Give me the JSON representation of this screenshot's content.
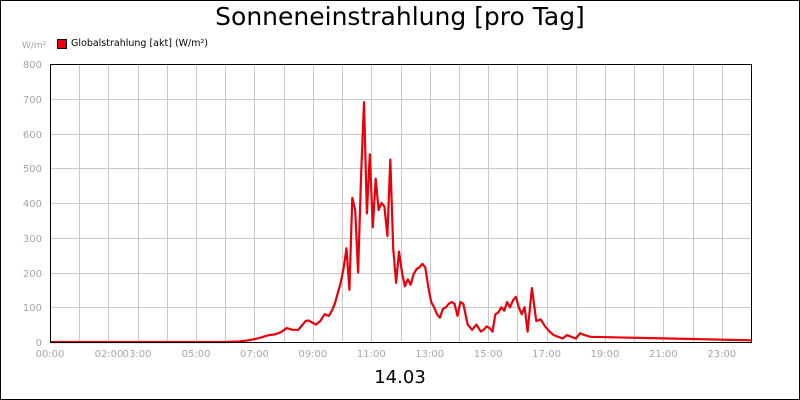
{
  "chart_data": {
    "type": "line",
    "title": "Sonneneinstrahlung [pro Tag]",
    "ylabel": "W/m²",
    "xlabel": "14.03",
    "ylim": [
      0,
      800
    ],
    "yticks": [
      0,
      100,
      200,
      300,
      400,
      500,
      600,
      700,
      800
    ],
    "xlim": [
      0,
      24
    ],
    "xticks": [
      {
        "x": 0,
        "label": "00:00"
      },
      {
        "x": 2,
        "label": "02:00"
      },
      {
        "x": 3,
        "label": "03:00"
      },
      {
        "x": 5,
        "label": "05:00"
      },
      {
        "x": 7,
        "label": "07:00"
      },
      {
        "x": 9,
        "label": "09:00"
      },
      {
        "x": 11,
        "label": "11:00"
      },
      {
        "x": 13,
        "label": "13:00"
      },
      {
        "x": 15,
        "label": "15:00"
      },
      {
        "x": 17,
        "label": "17:00"
      },
      {
        "x": 19,
        "label": "19:00"
      },
      {
        "x": 21,
        "label": "21:00"
      },
      {
        "x": 23,
        "label": "23:00"
      }
    ],
    "grid": true,
    "legend_position": "top-left",
    "series": [
      {
        "name": "Globalstrahlung [akt] (W/m²)",
        "color": "#e8000a",
        "x": [
          0,
          6.0,
          6.5,
          6.8,
          7.1,
          7.3,
          7.5,
          7.7,
          7.9,
          8.1,
          8.3,
          8.5,
          8.6,
          8.75,
          8.85,
          9.0,
          9.1,
          9.25,
          9.4,
          9.55,
          9.65,
          9.75,
          9.85,
          9.95,
          10.05,
          10.15,
          10.25,
          10.35,
          10.45,
          10.55,
          10.65,
          10.75,
          10.85,
          10.95,
          11.05,
          11.15,
          11.25,
          11.35,
          11.45,
          11.55,
          11.65,
          11.75,
          11.85,
          11.95,
          12.05,
          12.15,
          12.25,
          12.35,
          12.45,
          12.55,
          12.65,
          12.75,
          12.85,
          12.95,
          13.05,
          13.15,
          13.25,
          13.35,
          13.45,
          13.55,
          13.65,
          13.75,
          13.85,
          13.95,
          14.05,
          14.15,
          14.3,
          14.45,
          14.6,
          14.75,
          14.85,
          14.95,
          15.05,
          15.15,
          15.25,
          15.35,
          15.45,
          15.55,
          15.65,
          15.75,
          15.85,
          15.95,
          16.05,
          16.15,
          16.25,
          16.35,
          16.5,
          16.65,
          16.8,
          16.95,
          17.1,
          17.25,
          17.4,
          17.55,
          17.7,
          17.85,
          18.0,
          18.15,
          18.3,
          18.5,
          24.0
        ],
        "values": [
          0,
          0,
          2,
          5,
          10,
          15,
          20,
          22,
          28,
          40,
          35,
          35,
          45,
          60,
          62,
          55,
          50,
          60,
          80,
          75,
          90,
          110,
          140,
          170,
          210,
          270,
          150,
          415,
          380,
          200,
          480,
          690,
          370,
          540,
          330,
          470,
          380,
          400,
          390,
          305,
          525,
          270,
          170,
          260,
          200,
          160,
          180,
          165,
          195,
          210,
          215,
          225,
          215,
          160,
          115,
          100,
          80,
          70,
          95,
          100,
          110,
          115,
          110,
          75,
          115,
          110,
          50,
          35,
          50,
          30,
          35,
          45,
          40,
          30,
          80,
          85,
          100,
          90,
          115,
          100,
          120,
          130,
          100,
          80,
          100,
          30,
          155,
          60,
          65,
          45,
          30,
          20,
          15,
          10,
          20,
          15,
          10,
          25,
          20,
          15,
          5
        ]
      }
    ]
  }
}
